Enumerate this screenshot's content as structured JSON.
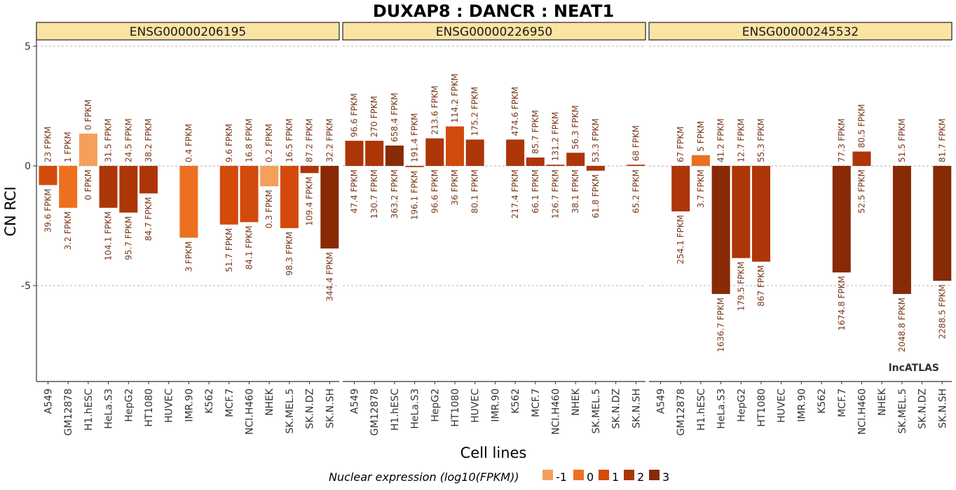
{
  "chart_data": {
    "type": "bar",
    "title": "DUXAP8 : DANCR : NEAT1",
    "xlabel": "Cell lines",
    "ylabel": "CN RCI",
    "ylim": [
      -9,
      6
    ],
    "yticks": [
      5,
      0,
      -5
    ],
    "grid": "dashed horizontal at ticks",
    "watermark": "lncATLAS",
    "categories": [
      "A549",
      "GM12878",
      "H1.hESC",
      "HeLa.S3",
      "HepG2",
      "HT1080",
      "HUVEC",
      "IMR.90",
      "K562",
      "MCF.7",
      "NCI.H460",
      "NHEK",
      "SK.MEL.5",
      "SK.N.DZ",
      "SK.N.SH"
    ],
    "legend": {
      "title": "Nuclear expression (log10(FPKM))",
      "position": "bottom",
      "levels": [
        {
          "label": "-1",
          "color": "#f5a05a"
        },
        {
          "label": "0",
          "color": "#ed7020"
        },
        {
          "label": "1",
          "color": "#d24a0c"
        },
        {
          "label": "2",
          "color": "#ad3608"
        },
        {
          "label": "3",
          "color": "#872a05"
        }
      ]
    },
    "panels": [
      {
        "name": "ENSG00000206195",
        "values": [
          -0.8,
          -1.75,
          1.35,
          -1.75,
          -1.95,
          -1.15,
          null,
          -3.0,
          null,
          -2.45,
          -2.35,
          -0.85,
          -2.6,
          -0.3,
          -3.45
        ],
        "cyto_labels": [
          "23 FPKM",
          "1 FPKM",
          "0 FPKM",
          "31.5 FPKM",
          "24.5 FPKM",
          "38.2 FPKM",
          "",
          "0.4 FPKM",
          "",
          "9.6 FPKM",
          "16.8 FPKM",
          "0.2 FPKM",
          "16.5 FPKM",
          "87.2 FPKM",
          "32.2 FPKM"
        ],
        "nuc_labels": [
          "39.6 FPKM",
          "3.2 FPKM",
          "0 FPKM",
          "104.1 FPKM",
          "95.7 FPKM",
          "84.7 FPKM",
          "",
          "3 FPKM",
          "",
          "51.7 FPKM",
          "84.1 FPKM",
          "0.3 FPKM",
          "98.3 FPKM",
          "109.4 FPKM",
          "344.4 FPKM"
        ],
        "levels": [
          1,
          0,
          -1,
          2,
          2,
          2,
          null,
          0,
          null,
          1,
          1,
          -1,
          1,
          2,
          3
        ]
      },
      {
        "name": "ENSG00000226950",
        "values": [
          1.05,
          1.05,
          0.85,
          -0.05,
          1.15,
          1.65,
          1.1,
          null,
          1.1,
          0.35,
          0.05,
          0.55,
          -0.2,
          null,
          0.05
        ],
        "cyto_labels": [
          "96.6 FPKM",
          "270 FPKM",
          "658.4 FPKM",
          "191.4 FPKM",
          "213.6 FPKM",
          "114.2 FPKM",
          "175.2 FPKM",
          "",
          "474.6 FPKM",
          "85.7 FPKM",
          "131.2 FPKM",
          "56.3 FPKM",
          "53.3 FPKM",
          "",
          "68 FPKM"
        ],
        "nuc_labels": [
          "47.4 FPKM",
          "130.7 FPKM",
          "363.2 FPKM",
          "196.1 FPKM",
          "96.6 FPKM",
          "36 FPKM",
          "80.1 FPKM",
          "",
          "217.4 FPKM",
          "66.1 FPKM",
          "126.7 FPKM",
          "38.1 FPKM",
          "61.8 FPKM",
          "",
          "65.2 FPKM"
        ],
        "levels": [
          2,
          2,
          3,
          2,
          2,
          1,
          2,
          null,
          2,
          2,
          2,
          2,
          2,
          null,
          2
        ]
      },
      {
        "name": "ENSG00000245532",
        "values": [
          null,
          -1.9,
          0.45,
          -5.35,
          -3.85,
          -4.0,
          null,
          null,
          null,
          -4.45,
          0.6,
          null,
          -5.35,
          null,
          -4.8
        ],
        "cyto_labels": [
          "",
          "67 FPKM",
          "5 FPKM",
          "41.2 FPKM",
          "12.7 FPKM",
          "55.3 FPKM",
          "",
          "",
          "",
          "77.3 FPKM",
          "80.5 FPKM",
          "",
          "51.5 FPKM",
          "",
          "81.7 FPKM"
        ],
        "nuc_labels": [
          "",
          "254.1 FPKM",
          "3.7 FPKM",
          "1636.7 FPKM",
          "179.5 FPKM",
          "867 FPKM",
          "",
          "",
          "",
          "1674.8 FPKM",
          "52.5 FPKM",
          "",
          "2048.8 FPKM",
          "",
          "2288.5 FPKM"
        ],
        "levels": [
          null,
          2,
          0,
          3,
          2,
          2,
          null,
          null,
          null,
          3,
          2,
          null,
          3,
          null,
          3
        ]
      }
    ]
  }
}
